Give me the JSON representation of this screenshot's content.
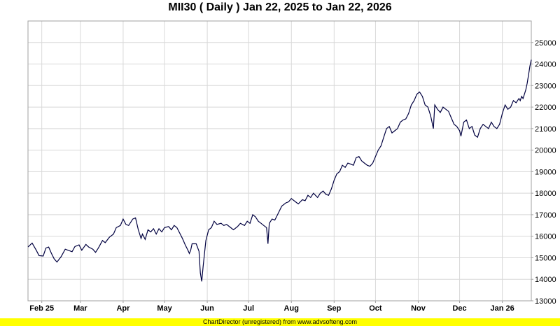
{
  "title": "MII30 ( Daily ) Jan 22, 2025 to Jan 22, 2026",
  "footer": "ChartDirector (unregistered) from www.advsofteng.com",
  "colors": {
    "line": "#000040",
    "grid": "#d8d8d8",
    "border": "#a0a0a0",
    "footer_bg": "#ffff00"
  },
  "chart_data": {
    "type": "line",
    "title": "MII30 ( Daily ) Jan 22, 2025 to Jan 22, 2026",
    "xlabel": "",
    "ylabel": "",
    "ylim": [
      13000,
      26000
    ],
    "xlim": [
      "2025-01-22",
      "2026-01-22"
    ],
    "y_ticks": [
      13000,
      14000,
      15000,
      16000,
      17000,
      18000,
      19000,
      20000,
      21000,
      22000,
      23000,
      24000,
      25000
    ],
    "y_axis_side": "right",
    "grid": true,
    "x_ticks": [
      {
        "label": "Feb 25",
        "date": "2025-02-01"
      },
      {
        "label": "Mar",
        "date": "2025-03-01"
      },
      {
        "label": "Apr",
        "date": "2025-04-01"
      },
      {
        "label": "May",
        "date": "2025-05-01"
      },
      {
        "label": "Jun",
        "date": "2025-06-01"
      },
      {
        "label": "Jul",
        "date": "2025-07-01"
      },
      {
        "label": "Aug",
        "date": "2025-08-01"
      },
      {
        "label": "Sep",
        "date": "2025-09-01"
      },
      {
        "label": "Oct",
        "date": "2025-10-01"
      },
      {
        "label": "Nov",
        "date": "2025-11-01"
      },
      {
        "label": "Dec",
        "date": "2025-12-01"
      },
      {
        "label": "Jan 26",
        "date": "2026-01-01"
      }
    ],
    "series": [
      {
        "values": [
          [
            "2025-01-22",
            15500
          ],
          [
            "2025-01-25",
            15680
          ],
          [
            "2025-01-28",
            15350
          ],
          [
            "2025-01-30",
            15100
          ],
          [
            "2025-02-02",
            15080
          ],
          [
            "2025-02-04",
            15450
          ],
          [
            "2025-02-06",
            15500
          ],
          [
            "2025-02-08",
            15200
          ],
          [
            "2025-02-10",
            14950
          ],
          [
            "2025-02-12",
            14800
          ],
          [
            "2025-02-15",
            15050
          ],
          [
            "2025-02-18",
            15400
          ],
          [
            "2025-02-20",
            15350
          ],
          [
            "2025-02-23",
            15280
          ],
          [
            "2025-02-25",
            15520
          ],
          [
            "2025-02-28",
            15600
          ],
          [
            "2025-03-02",
            15350
          ],
          [
            "2025-03-05",
            15620
          ],
          [
            "2025-03-07",
            15500
          ],
          [
            "2025-03-10",
            15400
          ],
          [
            "2025-03-12",
            15250
          ],
          [
            "2025-03-14",
            15450
          ],
          [
            "2025-03-17",
            15800
          ],
          [
            "2025-03-19",
            15700
          ],
          [
            "2025-03-22",
            15950
          ],
          [
            "2025-03-25",
            16100
          ],
          [
            "2025-03-27",
            16400
          ],
          [
            "2025-03-30",
            16500
          ],
          [
            "2025-04-01",
            16800
          ],
          [
            "2025-04-03",
            16550
          ],
          [
            "2025-04-05",
            16500
          ],
          [
            "2025-04-08",
            16800
          ],
          [
            "2025-04-10",
            16850
          ],
          [
            "2025-04-12",
            16300
          ],
          [
            "2025-04-14",
            15900
          ],
          [
            "2025-04-15",
            16100
          ],
          [
            "2025-04-17",
            15850
          ],
          [
            "2025-04-19",
            16300
          ],
          [
            "2025-04-21",
            16200
          ],
          [
            "2025-04-23",
            16350
          ],
          [
            "2025-04-25",
            16100
          ],
          [
            "2025-04-27",
            16350
          ],
          [
            "2025-04-29",
            16200
          ],
          [
            "2025-05-01",
            16400
          ],
          [
            "2025-05-04",
            16450
          ],
          [
            "2025-05-06",
            16300
          ],
          [
            "2025-05-08",
            16500
          ],
          [
            "2025-05-10",
            16400
          ],
          [
            "2025-05-12",
            16150
          ],
          [
            "2025-05-14",
            15900
          ],
          [
            "2025-05-16",
            15600
          ],
          [
            "2025-05-18",
            15350
          ],
          [
            "2025-05-19",
            15200
          ],
          [
            "2025-05-20",
            15350
          ],
          [
            "2025-05-21",
            15650
          ],
          [
            "2025-05-24",
            15650
          ],
          [
            "2025-05-26",
            15300
          ],
          [
            "2025-05-27",
            14300
          ],
          [
            "2025-05-28",
            13900
          ],
          [
            "2025-05-29",
            14600
          ],
          [
            "2025-05-31",
            15800
          ],
          [
            "2025-06-02",
            16300
          ],
          [
            "2025-06-04",
            16400
          ],
          [
            "2025-06-06",
            16700
          ],
          [
            "2025-06-08",
            16550
          ],
          [
            "2025-06-11",
            16600
          ],
          [
            "2025-06-13",
            16500
          ],
          [
            "2025-06-15",
            16550
          ],
          [
            "2025-06-18",
            16400
          ],
          [
            "2025-06-20",
            16300
          ],
          [
            "2025-06-23",
            16450
          ],
          [
            "2025-06-25",
            16600
          ],
          [
            "2025-06-28",
            16500
          ],
          [
            "2025-06-30",
            16700
          ],
          [
            "2025-07-02",
            16600
          ],
          [
            "2025-07-04",
            17000
          ],
          [
            "2025-07-06",
            16900
          ],
          [
            "2025-07-08",
            16700
          ],
          [
            "2025-07-10",
            16600
          ],
          [
            "2025-07-12",
            16500
          ],
          [
            "2025-07-14",
            16400
          ],
          [
            "2025-07-15",
            15650
          ],
          [
            "2025-07-16",
            16600
          ],
          [
            "2025-07-18",
            16800
          ],
          [
            "2025-07-20",
            16750
          ],
          [
            "2025-07-22",
            17000
          ],
          [
            "2025-07-25",
            17400
          ],
          [
            "2025-07-28",
            17550
          ],
          [
            "2025-07-30",
            17600
          ],
          [
            "2025-08-01",
            17750
          ],
          [
            "2025-08-04",
            17600
          ],
          [
            "2025-08-06",
            17500
          ],
          [
            "2025-08-09",
            17700
          ],
          [
            "2025-08-11",
            17650
          ],
          [
            "2025-08-13",
            17900
          ],
          [
            "2025-08-15",
            17800
          ],
          [
            "2025-08-17",
            18000
          ],
          [
            "2025-08-20",
            17800
          ],
          [
            "2025-08-22",
            18000
          ],
          [
            "2025-08-24",
            18100
          ],
          [
            "2025-08-26",
            17950
          ],
          [
            "2025-08-28",
            17900
          ],
          [
            "2025-08-30",
            18200
          ],
          [
            "2025-09-01",
            18600
          ],
          [
            "2025-09-03",
            18900
          ],
          [
            "2025-09-05",
            19000
          ],
          [
            "2025-09-07",
            19300
          ],
          [
            "2025-09-09",
            19200
          ],
          [
            "2025-09-11",
            19400
          ],
          [
            "2025-09-13",
            19350
          ],
          [
            "2025-09-15",
            19300
          ],
          [
            "2025-09-17",
            19650
          ],
          [
            "2025-09-19",
            19700
          ],
          [
            "2025-09-21",
            19500
          ],
          [
            "2025-09-23",
            19400
          ],
          [
            "2025-09-25",
            19300
          ],
          [
            "2025-09-27",
            19250
          ],
          [
            "2025-09-29",
            19400
          ],
          [
            "2025-10-01",
            19700
          ],
          [
            "2025-10-03",
            20000
          ],
          [
            "2025-10-05",
            20200
          ],
          [
            "2025-10-07",
            20600
          ],
          [
            "2025-10-09",
            21000
          ],
          [
            "2025-10-11",
            21100
          ],
          [
            "2025-10-13",
            20800
          ],
          [
            "2025-10-15",
            20900
          ],
          [
            "2025-10-17",
            21000
          ],
          [
            "2025-10-19",
            21300
          ],
          [
            "2025-10-21",
            21400
          ],
          [
            "2025-10-23",
            21450
          ],
          [
            "2025-10-25",
            21700
          ],
          [
            "2025-10-27",
            22100
          ],
          [
            "2025-10-29",
            22300
          ],
          [
            "2025-10-31",
            22600
          ],
          [
            "2025-11-02",
            22700
          ],
          [
            "2025-11-04",
            22500
          ],
          [
            "2025-11-06",
            22100
          ],
          [
            "2025-11-08",
            22000
          ],
          [
            "2025-11-10",
            21600
          ],
          [
            "2025-11-12",
            21000
          ],
          [
            "2025-11-13",
            22100
          ],
          [
            "2025-11-15",
            21900
          ],
          [
            "2025-11-17",
            21750
          ],
          [
            "2025-11-19",
            22000
          ],
          [
            "2025-11-21",
            21900
          ],
          [
            "2025-11-23",
            21800
          ],
          [
            "2025-11-25",
            21500
          ],
          [
            "2025-11-27",
            21200
          ],
          [
            "2025-11-29",
            21100
          ],
          [
            "2025-12-01",
            20900
          ],
          [
            "2025-12-02",
            20650
          ],
          [
            "2025-12-04",
            21300
          ],
          [
            "2025-12-06",
            21400
          ],
          [
            "2025-12-08",
            21000
          ],
          [
            "2025-12-10",
            21100
          ],
          [
            "2025-12-12",
            20700
          ],
          [
            "2025-12-14",
            20600
          ],
          [
            "2025-12-16",
            21000
          ],
          [
            "2025-12-18",
            21200
          ],
          [
            "2025-12-20",
            21100
          ],
          [
            "2025-12-22",
            21000
          ],
          [
            "2025-12-24",
            21300
          ],
          [
            "2025-12-26",
            21100
          ],
          [
            "2025-12-28",
            21000
          ],
          [
            "2025-12-30",
            21200
          ],
          [
            "2026-01-01",
            21700
          ],
          [
            "2026-01-03",
            22100
          ],
          [
            "2026-01-05",
            21900
          ],
          [
            "2026-01-07",
            22000
          ],
          [
            "2026-01-09",
            22300
          ],
          [
            "2026-01-11",
            22200
          ],
          [
            "2026-01-13",
            22400
          ],
          [
            "2026-01-14",
            22300
          ],
          [
            "2026-01-15",
            22500
          ],
          [
            "2026-01-16",
            22400
          ],
          [
            "2026-01-17",
            22600
          ],
          [
            "2026-01-18",
            22800
          ],
          [
            "2026-01-19",
            23100
          ],
          [
            "2026-01-20",
            23500
          ],
          [
            "2026-01-21",
            23900
          ],
          [
            "2026-01-22",
            24200
          ]
        ]
      }
    ]
  }
}
